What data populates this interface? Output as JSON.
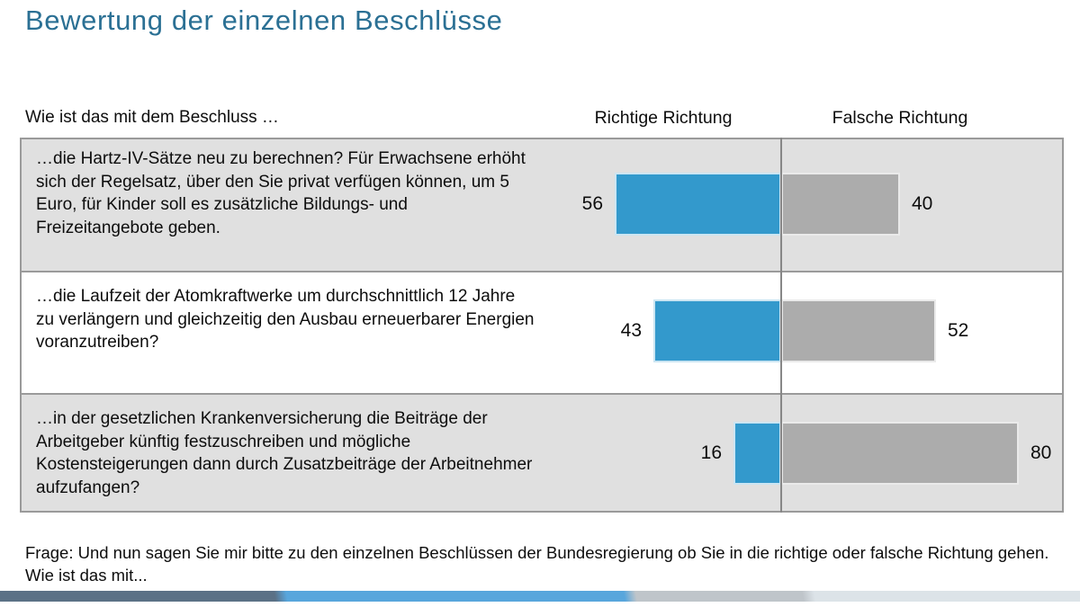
{
  "slide": {
    "title": "Bewertung der einzelnen Beschlüsse",
    "footnote": "Frage: Und nun sagen Sie mir bitte zu den einzelnen Beschlüssen der Bundesregierung ob Sie in die richtige oder falsche Richtung gehen. Wie ist das mit...",
    "colors": {
      "title_text": "#2B7094",
      "right_direction_bar": "#3399CC",
      "false_direction_bar": "#ACACAC",
      "row_shaded_background": "#E0E0E0",
      "row_plain_background": "#FFFFFF",
      "table_border": "#9A9A9A",
      "stripe_segments": [
        "#5B7186",
        "#58A6DC",
        "#BFC5CA",
        "#DCE3E8"
      ]
    }
  },
  "chart_data": {
    "type": "bar",
    "orientation": "horizontal-diverging-paired",
    "title": "Bewertung der einzelnen Beschlüsse",
    "question_header": "Wie ist das mit dem Beschluss …",
    "categories": [
      "…die Hartz-IV-Sätze neu zu berechnen? Für Erwachsene erhöht sich der Regelsatz, über den Sie privat verfügen können, um 5 Euro, für Kinder soll es zusätzliche Bildungs- und Freizeitangebote geben.",
      "…die Laufzeit der Atomkraftwerke um durchschnittlich 12 Jahre zu verlängern und gleichzeitig den Ausbau erneuerbarer Energien voranzutreiben?",
      "…in der gesetzlichen Krankenversicherung die Beiträge der Arbeitgeber künftig festzuschreiben und mögliche Kostensteigerungen dann durch Zusatzbeiträge der Arbeitnehmer aufzufangen?"
    ],
    "series": [
      {
        "name": "Richtige Richtung",
        "color": "#3399CC",
        "values": [
          56,
          43,
          16
        ]
      },
      {
        "name": "Falsche Richtung",
        "color": "#ACACAC",
        "values": [
          40,
          52,
          80
        ]
      }
    ],
    "value_labels": true,
    "xlim": [
      0,
      100
    ],
    "grid": false,
    "legend_position": "column-headers"
  }
}
